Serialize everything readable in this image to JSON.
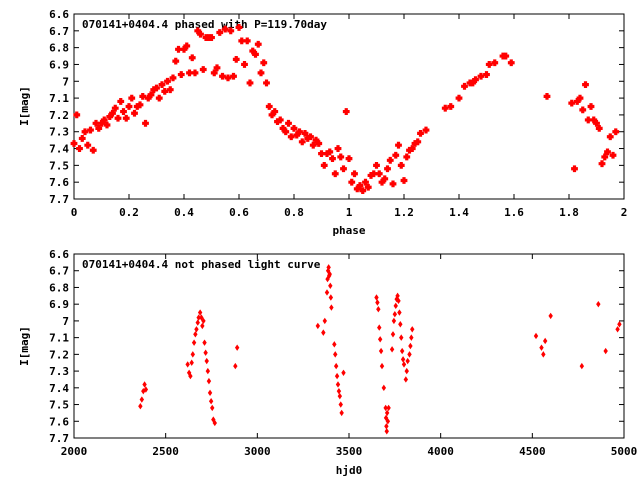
{
  "chart_data": [
    {
      "id": "top",
      "type": "scatter",
      "title": "070141+0404.4 phased with P=119.70day",
      "xlabel": "phase",
      "ylabel": "I[mag]",
      "xlim": [
        0,
        2
      ],
      "ylim": [
        7.7,
        6.6
      ],
      "y_inverted": true,
      "xticks": [
        0,
        0.2,
        0.4,
        0.6,
        0.8,
        1,
        1.2,
        1.4,
        1.6,
        1.8,
        2
      ],
      "xtick_labels": [
        "0",
        "0.2",
        "0.4",
        "0.6",
        "0.8",
        "1",
        "1.2",
        "1.4",
        "1.6",
        "1.8",
        "2"
      ],
      "yticks": [
        6.6,
        6.7,
        6.8,
        6.9,
        7.0,
        7.1,
        7.2,
        7.3,
        7.4,
        7.5,
        7.6,
        7.7
      ],
      "ytick_labels": [
        "6.6",
        "6.7",
        "6.8",
        "6.9",
        "7",
        "7.1",
        "7.2",
        "7.3",
        "7.4",
        "7.5",
        "7.6",
        "7.7"
      ],
      "grid": false,
      "marker": "square-cross",
      "color": "#ff0000",
      "points": [
        [
          0.0,
          7.37
        ],
        [
          0.01,
          7.2
        ],
        [
          0.02,
          7.4
        ],
        [
          0.03,
          7.34
        ],
        [
          0.04,
          7.3
        ],
        [
          0.05,
          7.38
        ],
        [
          0.06,
          7.29
        ],
        [
          0.07,
          7.41
        ],
        [
          0.08,
          7.25
        ],
        [
          0.09,
          7.28
        ],
        [
          0.1,
          7.25
        ],
        [
          0.11,
          7.23
        ],
        [
          0.12,
          7.26
        ],
        [
          0.13,
          7.21
        ],
        [
          0.14,
          7.19
        ],
        [
          0.15,
          7.16
        ],
        [
          0.16,
          7.22
        ],
        [
          0.17,
          7.12
        ],
        [
          0.18,
          7.18
        ],
        [
          0.19,
          7.22
        ],
        [
          0.2,
          7.15
        ],
        [
          0.21,
          7.1
        ],
        [
          0.22,
          7.19
        ],
        [
          0.23,
          7.15
        ],
        [
          0.24,
          7.14
        ],
        [
          0.25,
          7.09
        ],
        [
          0.26,
          7.25
        ],
        [
          0.27,
          7.1
        ],
        [
          0.28,
          7.08
        ],
        [
          0.29,
          7.05
        ],
        [
          0.3,
          7.04
        ],
        [
          0.31,
          7.1
        ],
        [
          0.32,
          7.02
        ],
        [
          0.33,
          7.06
        ],
        [
          0.34,
          7.0
        ],
        [
          0.35,
          7.05
        ],
        [
          0.36,
          6.98
        ],
        [
          0.37,
          6.88
        ],
        [
          0.38,
          6.81
        ],
        [
          0.39,
          6.96
        ],
        [
          0.4,
          6.81
        ],
        [
          0.41,
          6.79
        ],
        [
          0.42,
          6.95
        ],
        [
          0.43,
          6.86
        ],
        [
          0.44,
          6.95
        ],
        [
          0.45,
          6.7
        ],
        [
          0.46,
          6.72
        ],
        [
          0.47,
          6.93
        ],
        [
          0.48,
          6.74
        ],
        [
          0.49,
          6.74
        ],
        [
          0.5,
          6.74
        ],
        [
          0.51,
          6.95
        ],
        [
          0.52,
          6.92
        ],
        [
          0.53,
          6.71
        ],
        [
          0.54,
          6.97
        ],
        [
          0.55,
          6.69
        ],
        [
          0.56,
          6.98
        ],
        [
          0.57,
          6.7
        ],
        [
          0.58,
          6.97
        ],
        [
          0.59,
          6.87
        ],
        [
          0.6,
          6.68
        ],
        [
          0.61,
          6.76
        ],
        [
          0.62,
          6.9
        ],
        [
          0.63,
          6.76
        ],
        [
          0.64,
          7.01
        ],
        [
          0.65,
          6.82
        ],
        [
          0.66,
          6.84
        ],
        [
          0.67,
          6.78
        ],
        [
          0.68,
          6.95
        ],
        [
          0.69,
          6.89
        ],
        [
          0.7,
          7.01
        ],
        [
          0.71,
          7.15
        ],
        [
          0.72,
          7.2
        ],
        [
          0.73,
          7.18
        ],
        [
          0.74,
          7.24
        ],
        [
          0.75,
          7.23
        ],
        [
          0.76,
          7.28
        ],
        [
          0.77,
          7.3
        ],
        [
          0.78,
          7.25
        ],
        [
          0.79,
          7.33
        ],
        [
          0.8,
          7.28
        ],
        [
          0.81,
          7.32
        ],
        [
          0.82,
          7.3
        ],
        [
          0.83,
          7.36
        ],
        [
          0.84,
          7.31
        ],
        [
          0.85,
          7.34
        ],
        [
          0.86,
          7.33
        ],
        [
          0.87,
          7.38
        ],
        [
          0.88,
          7.35
        ],
        [
          0.89,
          7.37
        ],
        [
          0.9,
          7.43
        ],
        [
          0.91,
          7.5
        ],
        [
          0.92,
          7.43
        ],
        [
          0.93,
          7.42
        ],
        [
          0.94,
          7.46
        ],
        [
          0.95,
          7.55
        ],
        [
          0.96,
          7.4
        ],
        [
          0.97,
          7.45
        ],
        [
          0.98,
          7.52
        ],
        [
          0.99,
          7.18
        ],
        [
          1.0,
          7.46
        ],
        [
          1.01,
          7.6
        ],
        [
          1.02,
          7.55
        ],
        [
          1.03,
          7.64
        ],
        [
          1.04,
          7.62
        ],
        [
          1.05,
          7.65
        ],
        [
          1.06,
          7.6
        ],
        [
          1.07,
          7.63
        ],
        [
          1.08,
          7.56
        ],
        [
          1.09,
          7.55
        ],
        [
          1.1,
          7.5
        ],
        [
          1.11,
          7.55
        ],
        [
          1.12,
          7.6
        ],
        [
          1.13,
          7.58
        ],
        [
          1.14,
          7.52
        ],
        [
          1.15,
          7.47
        ],
        [
          1.16,
          7.61
        ],
        [
          1.17,
          7.44
        ],
        [
          1.18,
          7.38
        ],
        [
          1.19,
          7.5
        ],
        [
          1.2,
          7.59
        ],
        [
          1.21,
          7.45
        ],
        [
          1.22,
          7.41
        ],
        [
          1.23,
          7.4
        ],
        [
          1.24,
          7.37
        ],
        [
          1.25,
          7.36
        ],
        [
          1.26,
          7.31
        ],
        [
          1.28,
          7.29
        ],
        [
          1.35,
          7.16
        ],
        [
          1.37,
          7.15
        ],
        [
          1.4,
          7.1
        ],
        [
          1.42,
          7.03
        ],
        [
          1.44,
          7.01
        ],
        [
          1.45,
          7.01
        ],
        [
          1.46,
          6.99
        ],
        [
          1.48,
          6.97
        ],
        [
          1.5,
          6.96
        ],
        [
          1.51,
          6.9
        ],
        [
          1.53,
          6.89
        ],
        [
          1.56,
          6.85
        ],
        [
          1.57,
          6.85
        ],
        [
          1.59,
          6.89
        ],
        [
          1.72,
          7.09
        ],
        [
          1.81,
          7.13
        ],
        [
          1.82,
          7.52
        ],
        [
          1.83,
          7.12
        ],
        [
          1.84,
          7.1
        ],
        [
          1.85,
          7.17
        ],
        [
          1.86,
          7.02
        ],
        [
          1.87,
          7.23
        ],
        [
          1.88,
          7.15
        ],
        [
          1.89,
          7.23
        ],
        [
          1.9,
          7.25
        ],
        [
          1.91,
          7.28
        ],
        [
          1.92,
          7.49
        ],
        [
          1.93,
          7.45
        ],
        [
          1.94,
          7.42
        ],
        [
          1.95,
          7.33
        ],
        [
          1.96,
          7.44
        ],
        [
          1.97,
          7.3
        ]
      ]
    },
    {
      "id": "bottom",
      "type": "scatter",
      "title": "070141+0404.4 not phased light curve",
      "xlabel": "hjd0",
      "ylabel": "I[mag]",
      "xlim": [
        2000,
        5000
      ],
      "ylim": [
        7.7,
        6.6
      ],
      "y_inverted": true,
      "xticks": [
        2000,
        2500,
        3000,
        3500,
        4000,
        4500,
        5000
      ],
      "xtick_labels": [
        "2000",
        "2500",
        "3000",
        "3500",
        "4000",
        "4500",
        "5000"
      ],
      "yticks": [
        6.6,
        6.7,
        6.8,
        6.9,
        7.0,
        7.1,
        7.2,
        7.3,
        7.4,
        7.5,
        7.6,
        7.7
      ],
      "ytick_labels": [
        "6.6",
        "6.7",
        "6.8",
        "6.9",
        "7",
        "7.1",
        "7.2",
        "7.3",
        "7.4",
        "7.5",
        "7.6",
        "7.7"
      ],
      "grid": false,
      "marker": "diamond",
      "color": "#ff0000",
      "points": [
        [
          2362,
          7.51
        ],
        [
          2370,
          7.47
        ],
        [
          2378,
          7.42
        ],
        [
          2385,
          7.38
        ],
        [
          2392,
          7.41
        ],
        [
          2620,
          7.26
        ],
        [
          2628,
          7.31
        ],
        [
          2635,
          7.33
        ],
        [
          2642,
          7.25
        ],
        [
          2648,
          7.2
        ],
        [
          2655,
          7.13
        ],
        [
          2662,
          7.08
        ],
        [
          2668,
          7.05
        ],
        [
          2675,
          7.01
        ],
        [
          2680,
          6.98
        ],
        [
          2688,
          6.95
        ],
        [
          2695,
          6.98
        ],
        [
          2700,
          7.03
        ],
        [
          2706,
          7.0
        ],
        [
          2712,
          7.13
        ],
        [
          2718,
          7.19
        ],
        [
          2724,
          7.24
        ],
        [
          2730,
          7.3
        ],
        [
          2736,
          7.36
        ],
        [
          2742,
          7.43
        ],
        [
          2748,
          7.48
        ],
        [
          2754,
          7.52
        ],
        [
          2760,
          7.59
        ],
        [
          2768,
          7.61
        ],
        [
          2880,
          7.27
        ],
        [
          2890,
          7.16
        ],
        [
          3330,
          7.03
        ],
        [
          3360,
          7.07
        ],
        [
          3368,
          7.0
        ],
        [
          3380,
          6.83
        ],
        [
          3383,
          6.75
        ],
        [
          3386,
          6.7
        ],
        [
          3389,
          6.68
        ],
        [
          3392,
          6.73
        ],
        [
          3395,
          6.72
        ],
        [
          3398,
          6.79
        ],
        [
          3401,
          6.86
        ],
        [
          3404,
          6.92
        ],
        [
          3420,
          7.14
        ],
        [
          3425,
          7.2
        ],
        [
          3430,
          7.27
        ],
        [
          3435,
          7.33
        ],
        [
          3440,
          7.38
        ],
        [
          3445,
          7.42
        ],
        [
          3450,
          7.45
        ],
        [
          3455,
          7.5
        ],
        [
          3460,
          7.55
        ],
        [
          3470,
          7.31
        ],
        [
          3650,
          6.86
        ],
        [
          3655,
          6.89
        ],
        [
          3660,
          6.93
        ],
        [
          3665,
          7.04
        ],
        [
          3670,
          7.11
        ],
        [
          3675,
          7.18
        ],
        [
          3680,
          7.27
        ],
        [
          3690,
          7.4
        ],
        [
          3700,
          7.52
        ],
        [
          3702,
          7.58
        ],
        [
          3704,
          7.63
        ],
        [
          3706,
          7.66
        ],
        [
          3708,
          7.55
        ],
        [
          3712,
          7.6
        ],
        [
          3716,
          7.52
        ],
        [
          3735,
          7.17
        ],
        [
          3740,
          7.08
        ],
        [
          3745,
          7.0
        ],
        [
          3750,
          6.96
        ],
        [
          3755,
          6.91
        ],
        [
          3760,
          6.87
        ],
        [
          3765,
          6.85
        ],
        [
          3770,
          6.88
        ],
        [
          3775,
          6.95
        ],
        [
          3780,
          7.02
        ],
        [
          3785,
          7.1
        ],
        [
          3790,
          7.18
        ],
        [
          3795,
          7.23
        ],
        [
          3800,
          7.26
        ],
        [
          3810,
          7.35
        ],
        [
          3815,
          7.3
        ],
        [
          3820,
          7.24
        ],
        [
          3830,
          7.2
        ],
        [
          3835,
          7.15
        ],
        [
          3840,
          7.1
        ],
        [
          3845,
          7.05
        ],
        [
          4520,
          7.09
        ],
        [
          4550,
          7.16
        ],
        [
          4560,
          7.2
        ],
        [
          4570,
          7.12
        ],
        [
          4600,
          6.97
        ],
        [
          4770,
          7.27
        ],
        [
          4860,
          6.9
        ],
        [
          4900,
          7.18
        ],
        [
          4965,
          7.05
        ],
        [
          4975,
          7.02
        ]
      ]
    }
  ]
}
